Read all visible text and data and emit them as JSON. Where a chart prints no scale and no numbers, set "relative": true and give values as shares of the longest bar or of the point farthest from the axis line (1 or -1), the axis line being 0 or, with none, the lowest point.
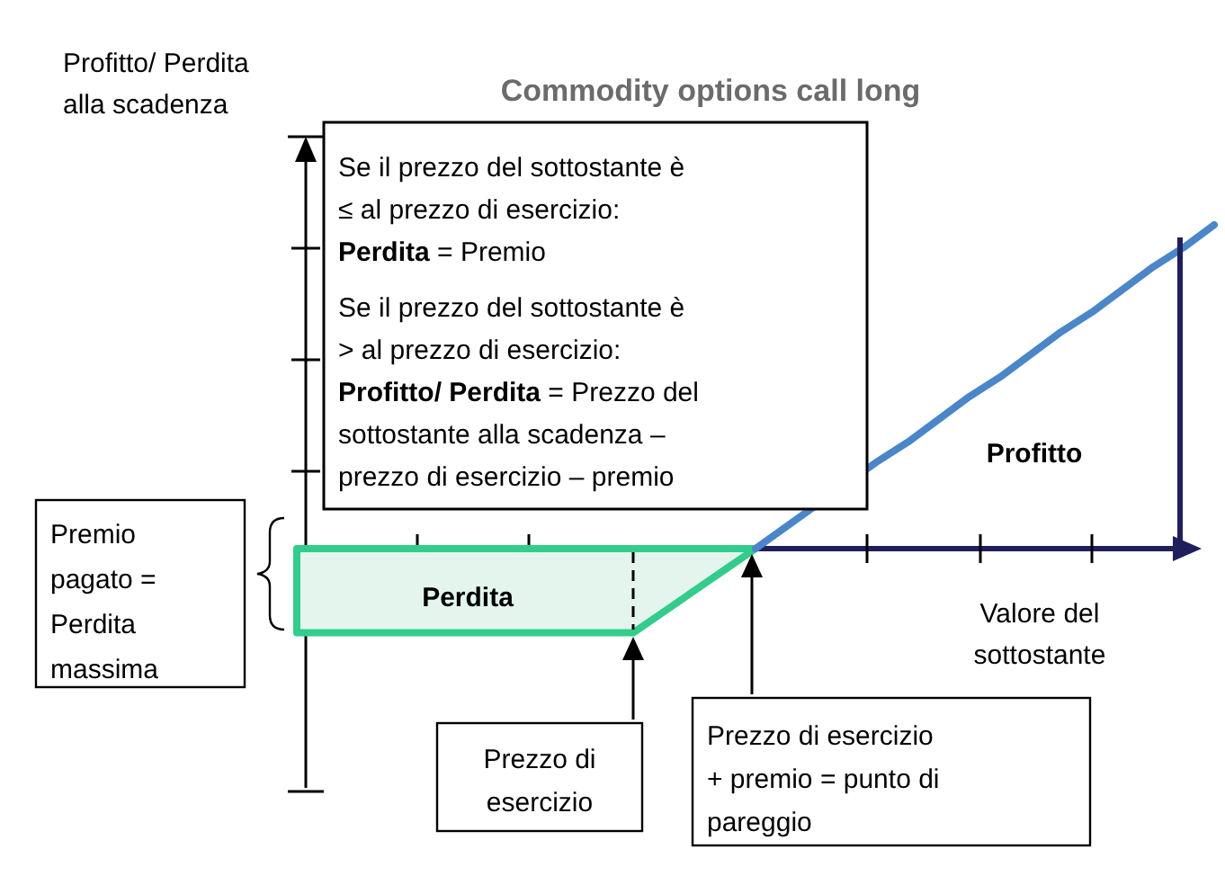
{
  "chart_data": {
    "type": "line",
    "title": "Commodity options call long",
    "xlabel": "Valore del\nsottostante",
    "ylabel": "Profitto/ Perdita\nalla scadenza",
    "relative": true,
    "categories": [
      null,
      null,
      null,
      null,
      null,
      null,
      null,
      null,
      null,
      null,
      null,
      null,
      null,
      null,
      null,
      null,
      null,
      null,
      null,
      null,
      null,
      null,
      null,
      null,
      null,
      null,
      null,
      null,
      null,
      null,
      null
    ],
    "series": [
      {
        "type": "area",
        "color": "#33cc8c",
        "values": [
          -0.26,
          -0.26,
          -0.26,
          -0.26,
          -0.26,
          -0.26,
          -0.26,
          -0.26,
          -0.26,
          -0.26,
          -0.26,
          -0.26,
          -0.195,
          -0.13,
          -0.065,
          0,
          null,
          null,
          null,
          null,
          null,
          null,
          null,
          null,
          null,
          null,
          null,
          null,
          null,
          null,
          null
        ]
      },
      {
        "color": "#4a86c8",
        "values": [
          null,
          null,
          null,
          null,
          null,
          null,
          null,
          null,
          null,
          null,
          null,
          null,
          null,
          null,
          null,
          0,
          null,
          null,
          null,
          0.27,
          0.33,
          0.4,
          0.47,
          0.53,
          0.6,
          0.67,
          0.73,
          0.8,
          0.87,
          0.93,
          1
        ]
      }
    ],
    "annotations": [
      "Se il prezzo del sottostante è\n≤ al prezzo di esercizio:\nPerdita = Premio",
      "Se il prezzo del sottostante è\n> al prezzo di esercizio:\nProfitto/ Perdita = Prezzo del\nsottostante alla scadenza –\nprezzo di esercizio – premio",
      "Premio\npagato =\nPerdita\nmassima",
      "Perdita",
      "Profitto",
      "Prezzo di\nesercizio",
      "Prezzo di esercizio\n+ premio = punto di\npareggio"
    ]
  }
}
